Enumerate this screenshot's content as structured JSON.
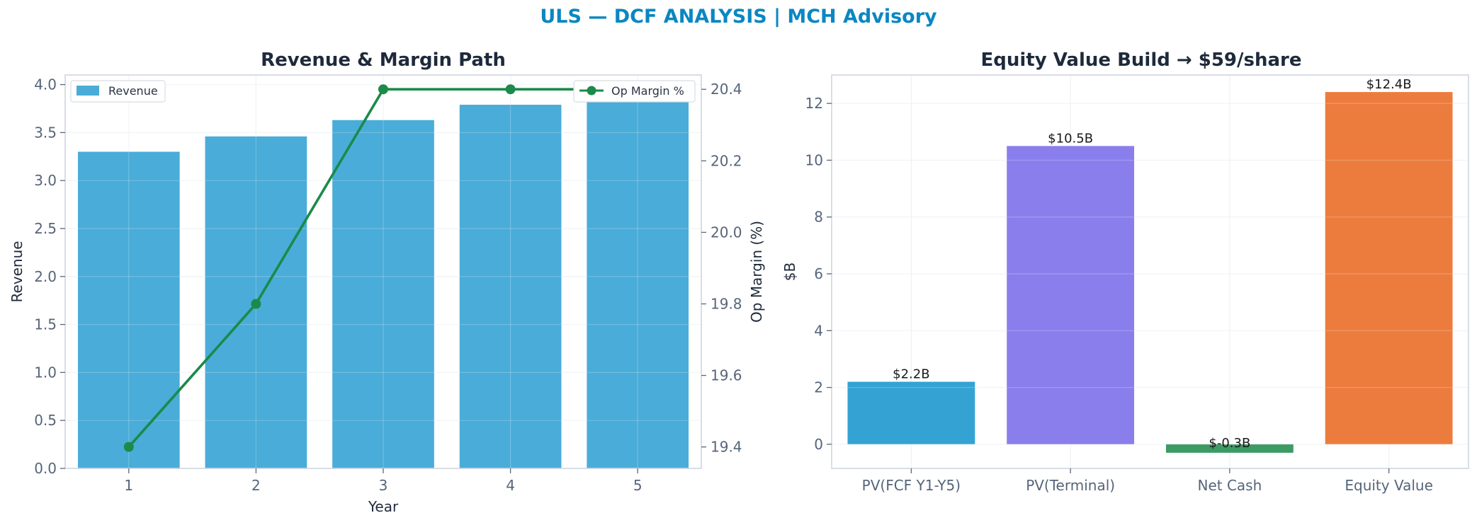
{
  "suptitle": "ULS — DCF ANALYSIS | MCH Advisory",
  "chart_data": [
    {
      "type": "bar",
      "title": "Revenue & Margin Path",
      "xlabel": "Year",
      "ylabel": "Revenue",
      "ylabel_right": "Op Margin (%)",
      "categories": [
        "1",
        "2",
        "3",
        "4",
        "5"
      ],
      "ylim": [
        0,
        4.1
      ],
      "ylim_right": [
        19.34,
        20.44
      ],
      "yticks": [
        0.0,
        0.5,
        1.0,
        1.5,
        2.0,
        2.5,
        3.0,
        3.5,
        4.0
      ],
      "yticks_right": [
        19.4,
        19.6,
        19.8,
        20.0,
        20.2,
        20.4
      ],
      "grid": true,
      "series": [
        {
          "name": "Revenue",
          "kind": "bar",
          "axis": "left",
          "color": "#4aacd8",
          "values": [
            3.3,
            3.46,
            3.63,
            3.79,
            3.95
          ]
        },
        {
          "name": "Op Margin %",
          "kind": "line",
          "axis": "right",
          "color": "#1b8a4a",
          "values": [
            19.4,
            19.8,
            20.4,
            20.4,
            20.4
          ]
        }
      ],
      "legend": [
        {
          "name": "Revenue",
          "placement": "top-left"
        },
        {
          "name": "Op Margin %",
          "placement": "top-right"
        }
      ]
    },
    {
      "type": "bar",
      "title": "Equity Value Build → $59/share",
      "xlabel": "",
      "ylabel": "$B",
      "categories": [
        "PV(FCF Y1-Y5)",
        "PV(Terminal)",
        "Net Cash",
        "Equity Value"
      ],
      "values": [
        2.2,
        10.5,
        -0.3,
        12.4
      ],
      "labels": [
        "$2.2B",
        "$10.5B",
        "$-0.3B",
        "$12.4B"
      ],
      "colors": [
        "#34a3d4",
        "#8a7eec",
        "#3e9a64",
        "#ec7c3e"
      ],
      "ylim": [
        -0.85,
        13.0
      ],
      "yticks": [
        0,
        2,
        4,
        6,
        8,
        10,
        12
      ],
      "grid": true
    }
  ]
}
